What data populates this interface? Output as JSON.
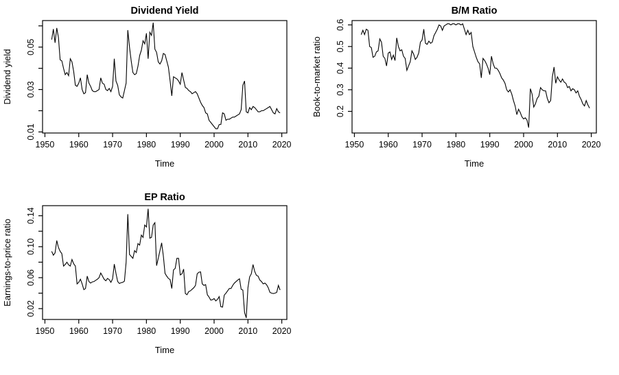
{
  "figure": {
    "background": "#ffffff",
    "line_color": "#000000",
    "axis_color": "#000000"
  },
  "chart_data": [
    {
      "id": "dividend-yield",
      "type": "line",
      "title": "Dividend Yield",
      "xlabel": "Time",
      "ylabel": "Dividend yield",
      "legend": "none",
      "grid": false,
      "xlim": [
        1949.3,
        2021.5
      ],
      "ylim": [
        0.0095,
        0.0625
      ],
      "xtick_values": [
        1950,
        1960,
        1970,
        1980,
        1990,
        2000,
        2010,
        2020
      ],
      "xtick_labels": [
        "1950",
        "1960",
        "1970",
        "1980",
        "1990",
        "2000",
        "2010",
        "2020"
      ],
      "ytick_values": [
        0.01,
        0.02,
        0.03,
        0.04,
        0.05,
        0.06
      ],
      "ytick_labels": [
        "0.01",
        "",
        "0.03",
        "",
        "0.05",
        ""
      ],
      "x_start": 1952.0,
      "x_step": 0.5,
      "values": [
        0.0535,
        0.0585,
        0.052,
        0.059,
        0.0545,
        0.044,
        0.0435,
        0.04,
        0.037,
        0.038,
        0.0365,
        0.0445,
        0.043,
        0.0385,
        0.032,
        0.0315,
        0.033,
        0.0355,
        0.03,
        0.028,
        0.0285,
        0.037,
        0.033,
        0.0315,
        0.0295,
        0.029,
        0.029,
        0.0295,
        0.03,
        0.0355,
        0.033,
        0.0325,
        0.03,
        0.0295,
        0.0305,
        0.029,
        0.0315,
        0.0445,
        0.034,
        0.032,
        0.0275,
        0.0265,
        0.026,
        0.0295,
        0.033,
        0.058,
        0.05,
        0.0435,
        0.038,
        0.037,
        0.0375,
        0.041,
        0.046,
        0.0485,
        0.053,
        0.0515,
        0.0565,
        0.0445,
        0.057,
        0.0555,
        0.0615,
        0.049,
        0.0475,
        0.043,
        0.042,
        0.0435,
        0.047,
        0.0465,
        0.0435,
        0.0405,
        0.034,
        0.027,
        0.036,
        0.0355,
        0.035,
        0.034,
        0.0325,
        0.038,
        0.0345,
        0.031,
        0.0305,
        0.0295,
        0.029,
        0.028,
        0.0285,
        0.029,
        0.028,
        0.026,
        0.024,
        0.0225,
        0.0215,
        0.019,
        0.0185,
        0.0155,
        0.0145,
        0.0135,
        0.0125,
        0.0115,
        0.0115,
        0.0135,
        0.0135,
        0.019,
        0.0185,
        0.0155,
        0.016,
        0.016,
        0.0165,
        0.017,
        0.017,
        0.0175,
        0.018,
        0.0185,
        0.0205,
        0.032,
        0.034,
        0.0195,
        0.019,
        0.0215,
        0.0205,
        0.022,
        0.0215,
        0.0205,
        0.0195,
        0.0195,
        0.02,
        0.02,
        0.0205,
        0.021,
        0.0215,
        0.022,
        0.0205,
        0.019,
        0.0185,
        0.021,
        0.0195,
        0.019
      ]
    },
    {
      "id": "bm-ratio",
      "type": "line",
      "title": "B/M Ratio",
      "xlabel": "Time",
      "ylabel": "Book-to-market ratio",
      "legend": "none",
      "grid": false,
      "xlim": [
        1949.3,
        2021.5
      ],
      "ylim": [
        0.1,
        0.62
      ],
      "xtick_values": [
        1950,
        1960,
        1970,
        1980,
        1990,
        2000,
        2010,
        2020
      ],
      "xtick_labels": [
        "1950",
        "1960",
        "1970",
        "1980",
        "1990",
        "2000",
        "2010",
        "2020"
      ],
      "ytick_values": [
        0.2,
        0.3,
        0.4,
        0.5,
        0.6
      ],
      "ytick_labels": [
        "0.2",
        "0.3",
        "0.4",
        "0.5",
        "0.6"
      ],
      "x_start": 1952.0,
      "x_step": 0.5,
      "values": [
        0.555,
        0.575,
        0.555,
        0.58,
        0.575,
        0.5,
        0.495,
        0.45,
        0.455,
        0.475,
        0.48,
        0.535,
        0.52,
        0.455,
        0.445,
        0.41,
        0.47,
        0.475,
        0.44,
        0.46,
        0.435,
        0.54,
        0.5,
        0.48,
        0.485,
        0.455,
        0.445,
        0.39,
        0.41,
        0.43,
        0.48,
        0.465,
        0.44,
        0.45,
        0.47,
        0.52,
        0.53,
        0.58,
        0.515,
        0.51,
        0.525,
        0.515,
        0.52,
        0.55,
        0.565,
        0.58,
        0.6,
        0.595,
        0.575,
        0.595,
        0.6,
        0.605,
        0.605,
        0.6,
        0.605,
        0.605,
        0.6,
        0.605,
        0.605,
        0.6,
        0.605,
        0.58,
        0.555,
        0.575,
        0.555,
        0.565,
        0.5,
        0.475,
        0.45,
        0.43,
        0.42,
        0.355,
        0.445,
        0.435,
        0.42,
        0.4,
        0.37,
        0.455,
        0.42,
        0.4,
        0.4,
        0.39,
        0.375,
        0.355,
        0.345,
        0.33,
        0.3,
        0.29,
        0.3,
        0.28,
        0.25,
        0.225,
        0.185,
        0.21,
        0.195,
        0.175,
        0.165,
        0.17,
        0.16,
        0.125,
        0.305,
        0.28,
        0.22,
        0.235,
        0.26,
        0.27,
        0.31,
        0.3,
        0.295,
        0.295,
        0.26,
        0.24,
        0.25,
        0.36,
        0.405,
        0.33,
        0.36,
        0.345,
        0.335,
        0.35,
        0.335,
        0.33,
        0.31,
        0.315,
        0.295,
        0.305,
        0.3,
        0.285,
        0.295,
        0.27,
        0.255,
        0.235,
        0.225,
        0.25,
        0.23,
        0.215
      ]
    },
    {
      "id": "ep-ratio",
      "type": "line",
      "title": "EP Ratio",
      "xlabel": "Time",
      "ylabel": "Earnings-to-price ratio",
      "legend": "none",
      "grid": false,
      "xlim": [
        1949.3,
        2021.5
      ],
      "ylim": [
        0.006,
        0.153
      ],
      "xtick_values": [
        1950,
        1960,
        1970,
        1980,
        1990,
        2000,
        2010,
        2020
      ],
      "xtick_labels": [
        "1950",
        "1960",
        "1970",
        "1980",
        "1990",
        "2000",
        "2010",
        "2020"
      ],
      "ytick_values": [
        0.02,
        0.04,
        0.06,
        0.08,
        0.1,
        0.12,
        0.14
      ],
      "ytick_labels": [
        "0.02",
        "",
        "0.06",
        "",
        "0.10",
        "",
        "0.14"
      ],
      "x_start": 1952.0,
      "x_step": 0.5,
      "values": [
        0.094,
        0.089,
        0.092,
        0.108,
        0.099,
        0.094,
        0.091,
        0.075,
        0.077,
        0.08,
        0.0765,
        0.075,
        0.0835,
        0.078,
        0.075,
        0.052,
        0.054,
        0.058,
        0.052,
        0.0445,
        0.046,
        0.062,
        0.055,
        0.053,
        0.0545,
        0.055,
        0.0565,
        0.058,
        0.06,
        0.066,
        0.062,
        0.058,
        0.056,
        0.059,
        0.0575,
        0.054,
        0.0585,
        0.0775,
        0.0655,
        0.055,
        0.0525,
        0.0535,
        0.054,
        0.0555,
        0.08,
        0.142,
        0.09,
        0.0875,
        0.085,
        0.095,
        0.0925,
        0.104,
        0.102,
        0.115,
        0.112,
        0.128,
        0.1255,
        0.149,
        0.111,
        0.112,
        0.128,
        0.131,
        0.0755,
        0.085,
        0.095,
        0.105,
        0.088,
        0.0655,
        0.062,
        0.059,
        0.0575,
        0.046,
        0.07,
        0.072,
        0.085,
        0.085,
        0.0635,
        0.065,
        0.071,
        0.0395,
        0.038,
        0.042,
        0.043,
        0.045,
        0.047,
        0.05,
        0.065,
        0.067,
        0.0675,
        0.052,
        0.05,
        0.051,
        0.038,
        0.035,
        0.031,
        0.0315,
        0.033,
        0.03,
        0.032,
        0.0355,
        0.0225,
        0.022,
        0.0375,
        0.04,
        0.043,
        0.046,
        0.046,
        0.05,
        0.053,
        0.055,
        0.057,
        0.0585,
        0.045,
        0.044,
        0.015,
        0.008,
        0.047,
        0.061,
        0.065,
        0.077,
        0.068,
        0.063,
        0.062,
        0.057,
        0.055,
        0.052,
        0.053,
        0.051,
        0.047,
        0.041,
        0.04,
        0.0395,
        0.04,
        0.041,
        0.05,
        0.044
      ]
    }
  ]
}
